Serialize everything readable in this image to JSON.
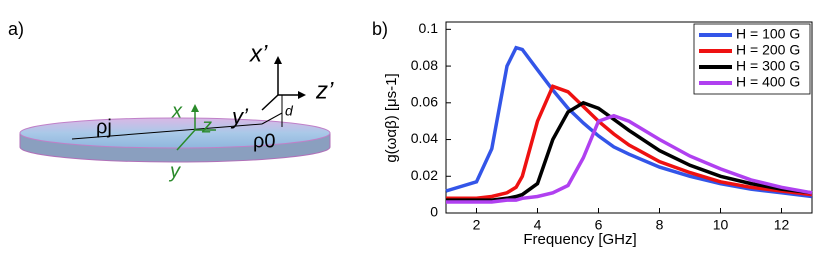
{
  "panel_labels": [
    "a)",
    "b)"
  ],
  "diagram": {
    "labels": [
      "x’",
      "z’",
      "y’",
      "d",
      "ρj",
      "ρ0",
      "x",
      "z",
      "y"
    ]
  },
  "chart_data": {
    "type": "line",
    "xlabel": "Frequency [GHz]",
    "ylabel": "g(ωαβ) [μs-1]",
    "x": [
      1,
      2,
      2.5,
      3,
      3.3,
      3.5,
      4,
      4.5,
      5,
      5.5,
      6,
      6.5,
      7,
      8,
      9,
      10,
      11,
      12,
      13
    ],
    "series": [
      {
        "name": "H = 100 G",
        "color": "#3355e8",
        "values": [
          0.012,
          0.017,
          0.035,
          0.08,
          0.09,
          0.089,
          0.078,
          0.067,
          0.057,
          0.049,
          0.042,
          0.036,
          0.032,
          0.025,
          0.02,
          0.016,
          0.013,
          0.011,
          0.009
        ]
      },
      {
        "name": "H = 200 G",
        "color": "#ee1111",
        "values": [
          0.008,
          0.008,
          0.009,
          0.011,
          0.014,
          0.02,
          0.05,
          0.069,
          0.066,
          0.058,
          0.05,
          0.043,
          0.037,
          0.028,
          0.022,
          0.017,
          0.014,
          0.012,
          0.01
        ]
      },
      {
        "name": "H = 300 G",
        "color": "#000000",
        "values": [
          0.007,
          0.007,
          0.007,
          0.008,
          0.009,
          0.01,
          0.016,
          0.04,
          0.055,
          0.06,
          0.057,
          0.051,
          0.045,
          0.034,
          0.026,
          0.02,
          0.016,
          0.013,
          0.011
        ]
      },
      {
        "name": "H = 400 G",
        "color": "#b040f0",
        "values": [
          0.006,
          0.006,
          0.006,
          0.007,
          0.007,
          0.008,
          0.009,
          0.011,
          0.015,
          0.03,
          0.05,
          0.053,
          0.05,
          0.04,
          0.031,
          0.024,
          0.018,
          0.014,
          0.011
        ]
      }
    ],
    "xlim": [
      1,
      13
    ],
    "xticks": [
      2,
      4,
      6,
      8,
      10,
      12
    ],
    "ylim": [
      0,
      0.104
    ],
    "yticks": [
      0,
      0.02,
      0.04,
      0.06,
      0.08,
      0.1
    ],
    "grid": false,
    "legend": "top-right"
  }
}
